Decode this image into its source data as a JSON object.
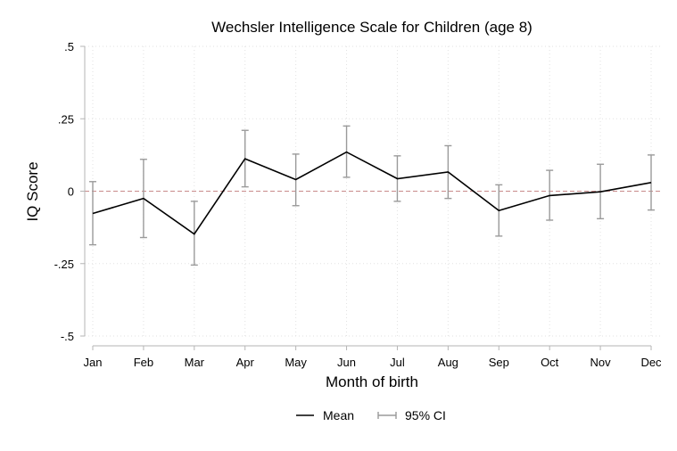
{
  "chart_data": {
    "type": "line",
    "title": "Wechsler Intelligence Scale for Children (age 8)",
    "xlabel": "Month of birth",
    "ylabel": "IQ Score",
    "categories": [
      "Jan",
      "Feb",
      "Mar",
      "Apr",
      "May",
      "Jun",
      "Jul",
      "Aug",
      "Sep",
      "Oct",
      "Nov",
      "Dec"
    ],
    "ylim": [
      -0.5,
      0.5
    ],
    "yticks": [
      {
        "value": 0.5,
        "label": ".5"
      },
      {
        "value": 0.25,
        "label": ".25"
      },
      {
        "value": 0,
        "label": "0"
      },
      {
        "value": -0.25,
        "label": "-.25"
      },
      {
        "value": -0.5,
        "label": "-.5"
      }
    ],
    "series": [
      {
        "name": "Mean",
        "values": [
          -0.077,
          -0.025,
          -0.148,
          0.112,
          0.04,
          0.135,
          0.043,
          0.066,
          -0.067,
          -0.015,
          -0.002,
          0.03
        ],
        "ci_low": [
          -0.185,
          -0.16,
          -0.255,
          0.015,
          -0.05,
          0.048,
          -0.035,
          -0.025,
          -0.155,
          -0.1,
          -0.095,
          -0.065
        ],
        "ci_high": [
          0.033,
          0.11,
          -0.035,
          0.21,
          0.128,
          0.225,
          0.122,
          0.157,
          0.022,
          0.072,
          0.093,
          0.125
        ]
      }
    ],
    "ci_label": "95% CI",
    "reference_line": 0,
    "grid": true,
    "legend_position": "bottom",
    "colors": {
      "mean_line": "#000000",
      "ci_bars": "#9a9a9a",
      "reference_line": "#c88a8a",
      "grid": "#e2e2e2",
      "axis": "#b5b5b5"
    }
  }
}
